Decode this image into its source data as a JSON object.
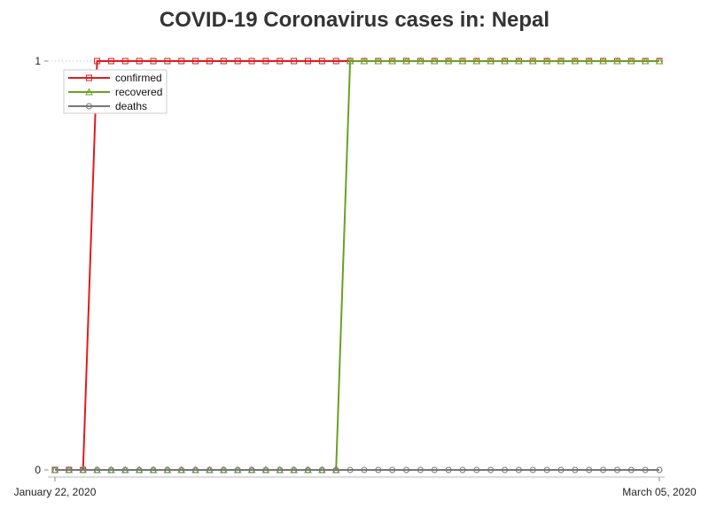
{
  "chart_data": {
    "type": "line",
    "title": "COVID-19 Coronavirus cases in: Nepal",
    "xlabel": "",
    "ylabel": "",
    "x_ticks": [
      "January 22, 2020",
      "March 05, 2020"
    ],
    "y_ticks": [
      "0",
      "1"
    ],
    "ylim": [
      0,
      1
    ],
    "num_points": 44,
    "grid": false,
    "legend_position": "top-left",
    "series": [
      {
        "name": "confirmed",
        "color": "#e31a1c",
        "marker": "square",
        "values": [
          0,
          0,
          0,
          1,
          1,
          1,
          1,
          1,
          1,
          1,
          1,
          1,
          1,
          1,
          1,
          1,
          1,
          1,
          1,
          1,
          1,
          1,
          1,
          1,
          1,
          1,
          1,
          1,
          1,
          1,
          1,
          1,
          1,
          1,
          1,
          1,
          1,
          1,
          1,
          1,
          1,
          1,
          1,
          1
        ]
      },
      {
        "name": "recovered",
        "color": "#6aa121",
        "marker": "triangle",
        "values": [
          0,
          0,
          0,
          0,
          0,
          0,
          0,
          0,
          0,
          0,
          0,
          0,
          0,
          0,
          0,
          0,
          0,
          0,
          0,
          0,
          0,
          1,
          1,
          1,
          1,
          1,
          1,
          1,
          1,
          1,
          1,
          1,
          1,
          1,
          1,
          1,
          1,
          1,
          1,
          1,
          1,
          1,
          1,
          1
        ]
      },
      {
        "name": "deaths",
        "color": "#777777",
        "marker": "circle",
        "values": [
          0,
          0,
          0,
          0,
          0,
          0,
          0,
          0,
          0,
          0,
          0,
          0,
          0,
          0,
          0,
          0,
          0,
          0,
          0,
          0,
          0,
          0,
          0,
          0,
          0,
          0,
          0,
          0,
          0,
          0,
          0,
          0,
          0,
          0,
          0,
          0,
          0,
          0,
          0,
          0,
          0,
          0,
          0,
          0
        ]
      }
    ]
  }
}
